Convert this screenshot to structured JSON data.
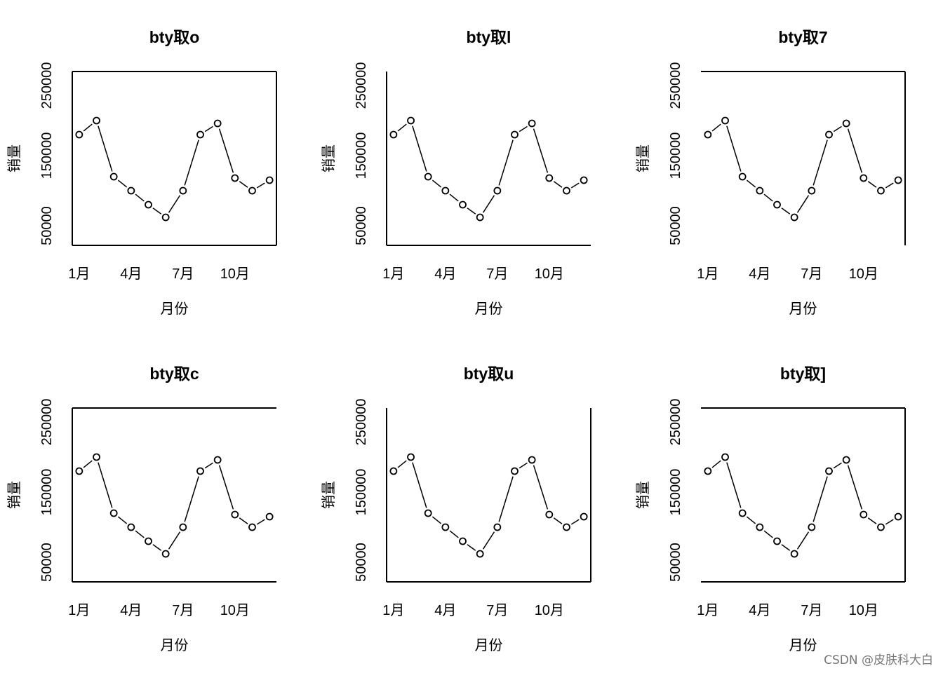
{
  "watermark": "CSDN @皮肤科大白",
  "chart_data": [
    {
      "type": "line",
      "title": "bty取o",
      "bty": "o",
      "xlabel": "月份",
      "ylabel": "销量",
      "x": [
        1,
        2,
        3,
        4,
        5,
        6,
        7,
        8,
        9,
        10,
        11,
        12
      ],
      "values": [
        180000,
        200000,
        120000,
        100000,
        80000,
        62000,
        100000,
        180000,
        196000,
        118000,
        100000,
        115000
      ],
      "xticks": [
        {
          "v": 1,
          "label": "1月"
        },
        {
          "v": 4,
          "label": "4月"
        },
        {
          "v": 7,
          "label": "7月"
        },
        {
          "v": 10,
          "label": "10月"
        }
      ],
      "yticks": [
        {
          "v": 50000,
          "label": "50000"
        },
        {
          "v": 150000,
          "label": "150000"
        },
        {
          "v": 250000,
          "label": "250000"
        }
      ],
      "xlim": [
        0.6,
        12.4
      ],
      "ylim": [
        22000,
        270000
      ]
    },
    {
      "type": "line",
      "title": "bty取l",
      "bty": "l",
      "xlabel": "月份",
      "ylabel": "销量",
      "x": [
        1,
        2,
        3,
        4,
        5,
        6,
        7,
        8,
        9,
        10,
        11,
        12
      ],
      "values": [
        180000,
        200000,
        120000,
        100000,
        80000,
        62000,
        100000,
        180000,
        196000,
        118000,
        100000,
        115000
      ],
      "xticks": [
        {
          "v": 1,
          "label": "1月"
        },
        {
          "v": 4,
          "label": "4月"
        },
        {
          "v": 7,
          "label": "7月"
        },
        {
          "v": 10,
          "label": "10月"
        }
      ],
      "yticks": [
        {
          "v": 50000,
          "label": "50000"
        },
        {
          "v": 150000,
          "label": "150000"
        },
        {
          "v": 250000,
          "label": "250000"
        }
      ],
      "xlim": [
        0.6,
        12.4
      ],
      "ylim": [
        22000,
        270000
      ]
    },
    {
      "type": "line",
      "title": "bty取7",
      "bty": "7",
      "xlabel": "月份",
      "ylabel": "销量",
      "x": [
        1,
        2,
        3,
        4,
        5,
        6,
        7,
        8,
        9,
        10,
        11,
        12
      ],
      "values": [
        180000,
        200000,
        120000,
        100000,
        80000,
        62000,
        100000,
        180000,
        196000,
        118000,
        100000,
        115000
      ],
      "xticks": [
        {
          "v": 1,
          "label": "1月"
        },
        {
          "v": 4,
          "label": "4月"
        },
        {
          "v": 7,
          "label": "7月"
        },
        {
          "v": 10,
          "label": "10月"
        }
      ],
      "yticks": [
        {
          "v": 50000,
          "label": "50000"
        },
        {
          "v": 150000,
          "label": "150000"
        },
        {
          "v": 250000,
          "label": "250000"
        }
      ],
      "xlim": [
        0.6,
        12.4
      ],
      "ylim": [
        22000,
        270000
      ]
    },
    {
      "type": "line",
      "title": "bty取c",
      "bty": "c",
      "xlabel": "月份",
      "ylabel": "销量",
      "x": [
        1,
        2,
        3,
        4,
        5,
        6,
        7,
        8,
        9,
        10,
        11,
        12
      ],
      "values": [
        180000,
        200000,
        120000,
        100000,
        80000,
        62000,
        100000,
        180000,
        196000,
        118000,
        100000,
        115000
      ],
      "xticks": [
        {
          "v": 1,
          "label": "1月"
        },
        {
          "v": 4,
          "label": "4月"
        },
        {
          "v": 7,
          "label": "7月"
        },
        {
          "v": 10,
          "label": "10月"
        }
      ],
      "yticks": [
        {
          "v": 50000,
          "label": "50000"
        },
        {
          "v": 150000,
          "label": "150000"
        },
        {
          "v": 250000,
          "label": "250000"
        }
      ],
      "xlim": [
        0.6,
        12.4
      ],
      "ylim": [
        22000,
        270000
      ]
    },
    {
      "type": "line",
      "title": "bty取u",
      "bty": "u",
      "xlabel": "月份",
      "ylabel": "销量",
      "x": [
        1,
        2,
        3,
        4,
        5,
        6,
        7,
        8,
        9,
        10,
        11,
        12
      ],
      "values": [
        180000,
        200000,
        120000,
        100000,
        80000,
        62000,
        100000,
        180000,
        196000,
        118000,
        100000,
        115000
      ],
      "xticks": [
        {
          "v": 1,
          "label": "1月"
        },
        {
          "v": 4,
          "label": "4月"
        },
        {
          "v": 7,
          "label": "7月"
        },
        {
          "v": 10,
          "label": "10月"
        }
      ],
      "yticks": [
        {
          "v": 50000,
          "label": "50000"
        },
        {
          "v": 150000,
          "label": "150000"
        },
        {
          "v": 250000,
          "label": "250000"
        }
      ],
      "xlim": [
        0.6,
        12.4
      ],
      "ylim": [
        22000,
        270000
      ]
    },
    {
      "type": "line",
      "title": "bty取]",
      "bty": "]",
      "xlabel": "月份",
      "ylabel": "销量",
      "x": [
        1,
        2,
        3,
        4,
        5,
        6,
        7,
        8,
        9,
        10,
        11,
        12
      ],
      "values": [
        180000,
        200000,
        120000,
        100000,
        80000,
        62000,
        100000,
        180000,
        196000,
        118000,
        100000,
        115000
      ],
      "xticks": [
        {
          "v": 1,
          "label": "1月"
        },
        {
          "v": 4,
          "label": "4月"
        },
        {
          "v": 7,
          "label": "7月"
        },
        {
          "v": 10,
          "label": "10月"
        }
      ],
      "yticks": [
        {
          "v": 50000,
          "label": "50000"
        },
        {
          "v": 150000,
          "label": "150000"
        },
        {
          "v": 250000,
          "label": "250000"
        }
      ],
      "xlim": [
        0.6,
        12.4
      ],
      "ylim": [
        22000,
        270000
      ]
    }
  ]
}
